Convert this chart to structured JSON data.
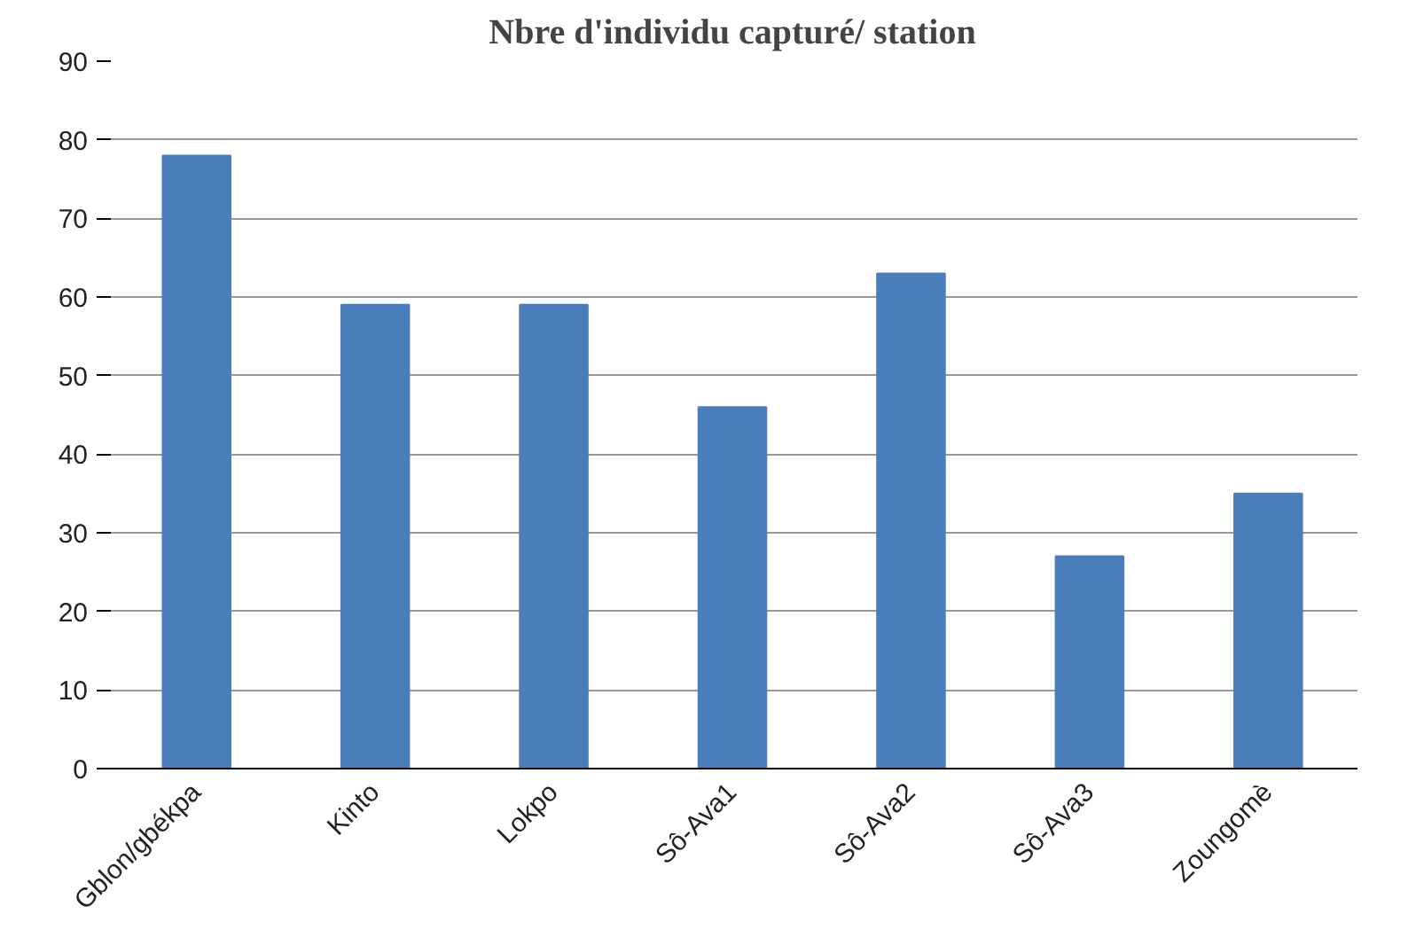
{
  "chart_data": {
    "type": "bar",
    "title": "Nbre d'individu capturé/ station",
    "categories": [
      "Gblon/gbékpa",
      "Kinto",
      "Lokpo",
      "Sô-Ava1",
      "Sô-Ava2",
      "Sô-Ava3",
      "Zoungomè"
    ],
    "values": [
      78,
      59,
      59,
      46,
      63,
      27,
      35
    ],
    "color": "#4a7ebb",
    "ylim": [
      0,
      90
    ],
    "yticks": [
      0,
      10,
      20,
      30,
      40,
      50,
      60,
      70,
      80,
      90
    ],
    "grid": "y"
  }
}
